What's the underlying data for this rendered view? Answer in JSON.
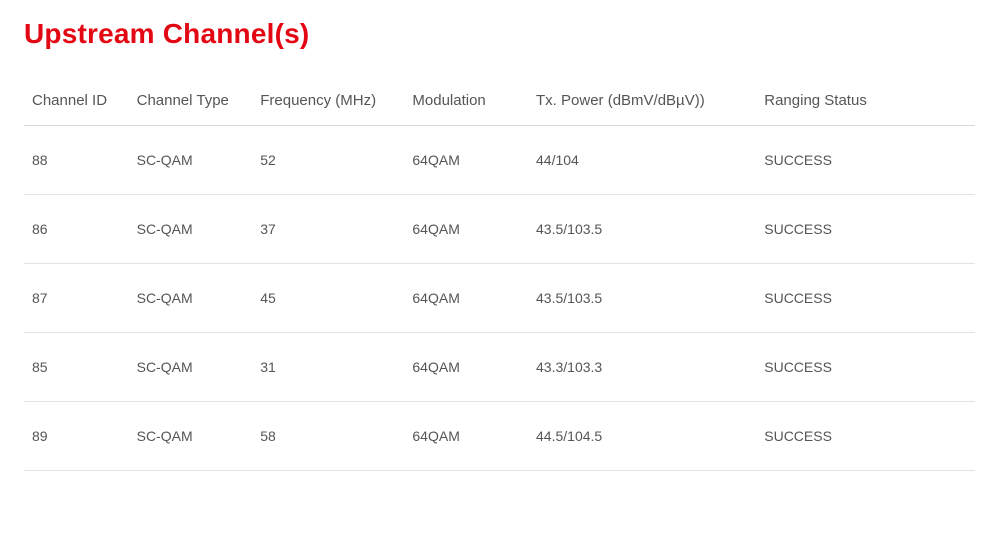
{
  "title": "Upstream Channel(s)",
  "colors": {
    "accent": "#e30613",
    "text": "#555555",
    "border": "#e2e2e2",
    "header_border": "#d9d9d9",
    "background": "#ffffff"
  },
  "table": {
    "columns": [
      "Channel ID",
      "Channel Type",
      "Frequency (MHz)",
      "Modulation",
      "Tx. Power (dBmV/dBµV))",
      "Ranging Status"
    ],
    "rows": [
      {
        "id": "88",
        "type": "SC-QAM",
        "freq": "52",
        "mod": "64QAM",
        "power": "44/104",
        "status": "SUCCESS"
      },
      {
        "id": "86",
        "type": "SC-QAM",
        "freq": "37",
        "mod": "64QAM",
        "power": "43.5/103.5",
        "status": "SUCCESS"
      },
      {
        "id": "87",
        "type": "SC-QAM",
        "freq": "45",
        "mod": "64QAM",
        "power": "43.5/103.5",
        "status": "SUCCESS"
      },
      {
        "id": "85",
        "type": "SC-QAM",
        "freq": "31",
        "mod": "64QAM",
        "power": "43.3/103.3",
        "status": "SUCCESS"
      },
      {
        "id": "89",
        "type": "SC-QAM",
        "freq": "58",
        "mod": "64QAM",
        "power": "44.5/104.5",
        "status": "SUCCESS"
      }
    ]
  }
}
